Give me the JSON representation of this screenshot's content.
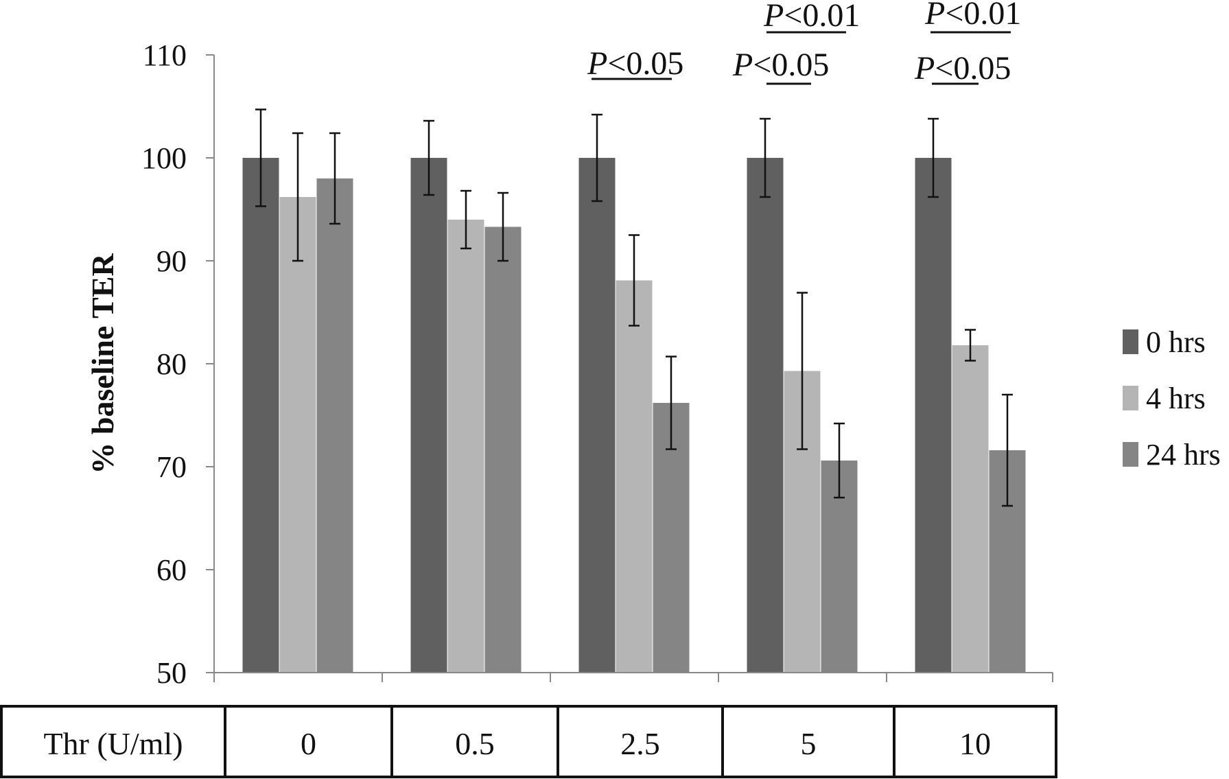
{
  "chart_data": {
    "type": "bar",
    "ylabel": "% baseline TER",
    "ylim": [
      50,
      110
    ],
    "yticks": [
      50,
      60,
      70,
      80,
      90,
      100,
      110
    ],
    "grid": false,
    "legend_placement": "right",
    "row_label": "Thr (U/ml)",
    "categories": [
      "0",
      "0.5",
      "2.5",
      "5",
      "10"
    ],
    "series": [
      {
        "name": "0 hrs",
        "color": "#606060",
        "values": [
          100,
          100,
          100,
          100,
          100
        ],
        "errors": [
          4.7,
          3.6,
          4.2,
          3.8,
          3.8
        ]
      },
      {
        "name": "4 hrs",
        "color": "#b5b5b5",
        "values": [
          96.2,
          94.0,
          88.1,
          79.3,
          81.8
        ],
        "errors": [
          6.2,
          2.8,
          4.4,
          7.6,
          1.5
        ]
      },
      {
        "name": "24 hrs",
        "color": "#858585",
        "values": [
          98.0,
          93.3,
          76.2,
          70.6,
          71.6
        ],
        "errors": [
          4.4,
          3.3,
          4.5,
          3.6,
          5.4
        ]
      }
    ],
    "annotations": [
      {
        "category": "2.5",
        "text_p": "P",
        "text_rest": "<0.05"
      },
      {
        "category": "5",
        "text_p": "P",
        "text_rest": "<0.01"
      },
      {
        "category": "5",
        "text_p": "P",
        "text_rest": "<0.05"
      },
      {
        "category": "10",
        "text_p": "P",
        "text_rest": "<0.01"
      },
      {
        "category": "10",
        "text_p": "P",
        "text_rest": "<0.05"
      }
    ]
  }
}
